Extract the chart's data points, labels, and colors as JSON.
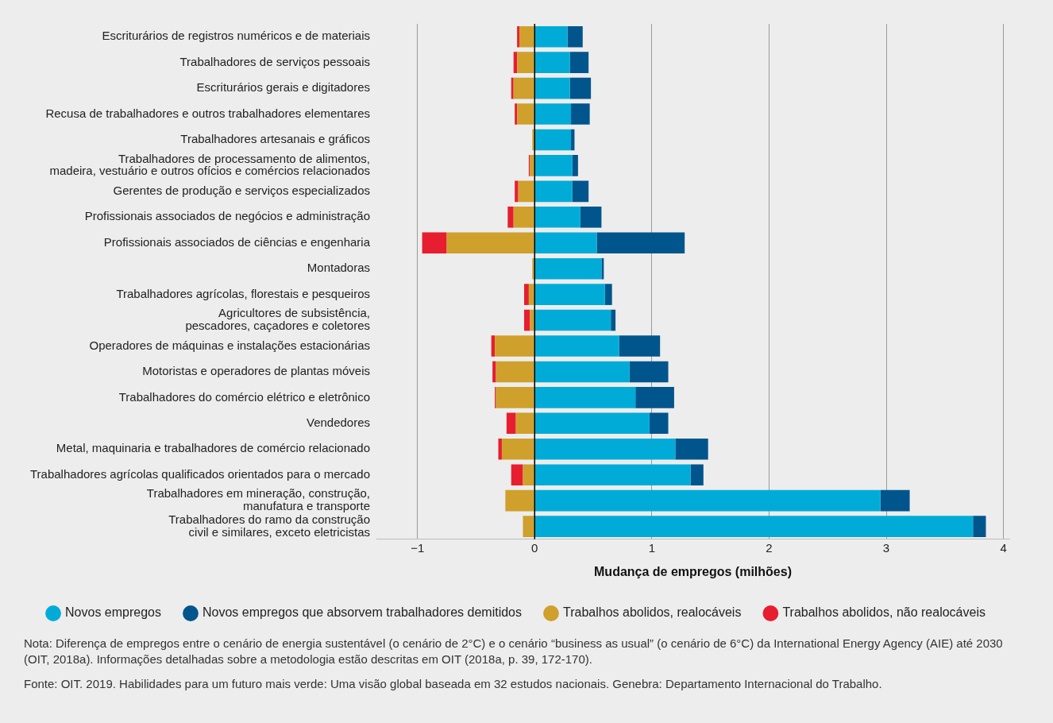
{
  "chart_data": {
    "type": "bar",
    "orientation": "horizontal",
    "stacked": true,
    "categories": [
      "Escriturários de registros numéricos e de materiais",
      "Trabalhadores de serviços pessoais",
      "Escriturários gerais e digitadores",
      "Recusa de trabalhadores e outros trabalhadores elementares",
      "Trabalhadores artesanais e gráficos",
      "Trabalhadores de processamento de alimentos,\nmadeira, vestuário e outros ofícios e comércios relacionados",
      "Gerentes de produção e serviços especializados",
      "Profissionais associados de negócios e administração",
      "Profissionais associados de ciências e engenharia",
      "Montadoras",
      "Trabalhadores agrícolas, florestais e pesqueiros",
      "Agricultores de subsistência,\npescadores, caçadores e coletores",
      "Operadores de máquinas e instalações estacionárias",
      "Motoristas e operadores de plantas móveis",
      "Trabalhadores do comércio elétrico e eletrônico",
      "Vendedores",
      "Metal, maquinaria e trabalhadores de comércio relacionado",
      "Trabalhadores agrícolas qualificados orientados para o mercado",
      "Trabalhadores em mineração, construção,\nmanufatura e transporte",
      "Trabalhadores do ramo da construção\ncivil e similares, exceto eletricistas"
    ],
    "series": [
      {
        "name": "Novos empregos",
        "color": "#00acd7",
        "values": [
          0.28,
          0.3,
          0.3,
          0.31,
          0.31,
          0.32,
          0.32,
          0.39,
          0.53,
          0.57,
          0.6,
          0.65,
          0.72,
          0.81,
          0.86,
          0.98,
          1.2,
          1.33,
          2.95,
          3.74
        ]
      },
      {
        "name": "Novos empregos que absorvem trabalhadores demitidos",
        "color": "#00558c",
        "values": [
          0.13,
          0.16,
          0.18,
          0.16,
          0.03,
          0.05,
          0.14,
          0.18,
          0.75,
          0.02,
          0.06,
          0.04,
          0.35,
          0.33,
          0.33,
          0.16,
          0.28,
          0.11,
          0.25,
          0.11
        ]
      },
      {
        "name": "Trabalhos abolidos, realocáveis",
        "color": "#d0a02c",
        "values": [
          -0.13,
          -0.15,
          -0.18,
          -0.15,
          -0.02,
          -0.04,
          -0.14,
          -0.18,
          -0.75,
          -0.02,
          -0.05,
          -0.04,
          -0.34,
          -0.33,
          -0.33,
          -0.16,
          -0.28,
          -0.1,
          -0.25,
          -0.1
        ]
      },
      {
        "name": "Trabalhos abolidos, não realocáveis",
        "color": "#e61e30",
        "values": [
          -0.02,
          -0.03,
          -0.02,
          -0.02,
          0,
          -0.01,
          -0.03,
          -0.05,
          -0.21,
          0,
          -0.04,
          -0.05,
          -0.03,
          -0.03,
          -0.01,
          -0.08,
          -0.03,
          -0.1,
          0,
          0
        ]
      }
    ],
    "xlabel": "Mudança de empregos (milhões)",
    "xlim": [
      -1.35,
      4.05
    ],
    "xticks": [
      {
        "value": -1,
        "label": "−1"
      },
      0,
      1,
      2,
      3,
      4
    ],
    "grid": "x",
    "legend": "bottom",
    "annotations": [
      "Nota: Diferença de empregos entre o cenário de energia sustentável (o cenário de 2°C) e o cenário “business as usual” (o cenário de 6°C) da International Energy Agency (AIE) até 2030 (OIT, 2018a). Informações detalhadas sobre a metodologia estão descritas em OIT (2018a, p. 39, 172-170).",
      "Fonte: OIT. 2019. Habilidades para um futuro mais verde: Uma visão global baseada em 32 estudos nacionais. Genebra: Departamento Internacional do Trabalho."
    ]
  }
}
